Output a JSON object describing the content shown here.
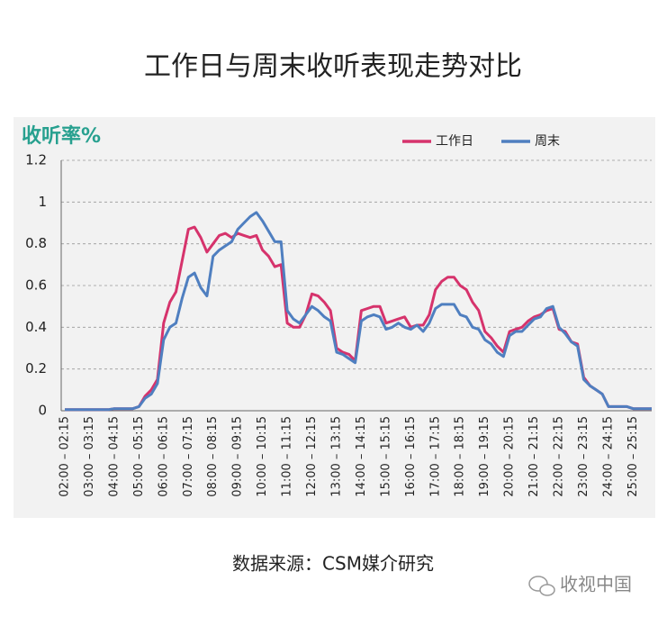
{
  "chart_data": {
    "type": "line",
    "title": "工作日与周末收听表现走势对比",
    "y_label": "收听率%",
    "source": "数据来源：CSM媒介研究",
    "watermark": "收视中国",
    "categories": [
      "02:00 – 02:15",
      null,
      null,
      null,
      "03:00 – 03:15",
      null,
      null,
      null,
      "04:00 – 04:15",
      null,
      null,
      null,
      "05:00 – 05:15",
      null,
      null,
      null,
      "06:00 – 06:15",
      null,
      null,
      null,
      "07:00 – 07:15",
      null,
      null,
      null,
      "08:00 – 08:15",
      null,
      null,
      null,
      "09:00 – 09:15",
      null,
      null,
      null,
      "10:00 – 10:15",
      null,
      null,
      null,
      "11:00 – 11:15",
      null,
      null,
      null,
      "12:00 – 12:15",
      null,
      null,
      null,
      "13:00 – 13:15",
      null,
      null,
      null,
      "14:00 – 14:15",
      null,
      null,
      null,
      "15:00 – 15:15",
      null,
      null,
      null,
      "16:00 – 16:15",
      null,
      null,
      null,
      "17:00 – 17:15",
      null,
      null,
      null,
      "18:00 – 18:15",
      null,
      null,
      null,
      "19:00 – 19:15",
      null,
      null,
      null,
      "20:00 – 20:15",
      null,
      null,
      null,
      "21:00 – 21:15",
      null,
      null,
      null,
      "22:00 – 22:15",
      null,
      null,
      null,
      "23:00 – 23:15",
      null,
      null,
      null,
      "24:00 – 24:15",
      null,
      null,
      null,
      "25:00 – 25:15",
      null,
      null,
      null
    ],
    "series": [
      {
        "name": "工作日",
        "color": "#d6336c",
        "values": [
          0.005,
          0.005,
          0.005,
          0.005,
          0.005,
          0.005,
          0.005,
          0.005,
          0.01,
          0.01,
          0.01,
          0.01,
          0.02,
          0.07,
          0.1,
          0.15,
          0.42,
          0.52,
          0.57,
          0.72,
          0.87,
          0.88,
          0.83,
          0.76,
          0.8,
          0.84,
          0.85,
          0.83,
          0.85,
          0.84,
          0.83,
          0.84,
          0.77,
          0.74,
          0.69,
          0.7,
          0.42,
          0.4,
          0.4,
          0.46,
          0.56,
          0.55,
          0.52,
          0.48,
          0.3,
          0.28,
          0.27,
          0.24,
          0.48,
          0.49,
          0.5,
          0.5,
          0.42,
          0.43,
          0.44,
          0.45,
          0.4,
          0.41,
          0.41,
          0.46,
          0.58,
          0.62,
          0.64,
          0.64,
          0.6,
          0.58,
          0.52,
          0.48,
          0.38,
          0.35,
          0.31,
          0.28,
          0.38,
          0.39,
          0.4,
          0.43,
          0.45,
          0.46,
          0.48,
          0.49,
          0.39,
          0.38,
          0.33,
          0.32,
          0.16,
          0.12,
          0.1,
          0.08,
          0.02,
          0.02,
          0.02,
          0.02,
          0.01,
          0.01,
          0.01,
          0.01
        ]
      },
      {
        "name": "周末",
        "color": "#4f7fc0",
        "values": [
          0.005,
          0.005,
          0.005,
          0.005,
          0.005,
          0.005,
          0.005,
          0.005,
          0.01,
          0.01,
          0.01,
          0.01,
          0.02,
          0.06,
          0.08,
          0.13,
          0.34,
          0.4,
          0.42,
          0.54,
          0.64,
          0.66,
          0.59,
          0.55,
          0.74,
          0.77,
          0.79,
          0.81,
          0.87,
          0.9,
          0.93,
          0.95,
          0.91,
          0.86,
          0.81,
          0.81,
          0.48,
          0.44,
          0.42,
          0.46,
          0.5,
          0.48,
          0.45,
          0.43,
          0.28,
          0.27,
          0.25,
          0.23,
          0.43,
          0.45,
          0.46,
          0.45,
          0.39,
          0.4,
          0.42,
          0.4,
          0.39,
          0.41,
          0.38,
          0.42,
          0.49,
          0.51,
          0.51,
          0.51,
          0.46,
          0.45,
          0.4,
          0.39,
          0.34,
          0.32,
          0.28,
          0.26,
          0.36,
          0.38,
          0.38,
          0.41,
          0.44,
          0.45,
          0.49,
          0.5,
          0.4,
          0.37,
          0.33,
          0.31,
          0.15,
          0.12,
          0.1,
          0.08,
          0.02,
          0.02,
          0.02,
          0.02,
          0.01,
          0.01,
          0.01,
          0.01
        ]
      }
    ],
    "ylim": [
      0,
      1.2
    ],
    "yticks": [
      0,
      0.2,
      0.4,
      0.6,
      0.8,
      1,
      1.2
    ],
    "grid": true
  }
}
